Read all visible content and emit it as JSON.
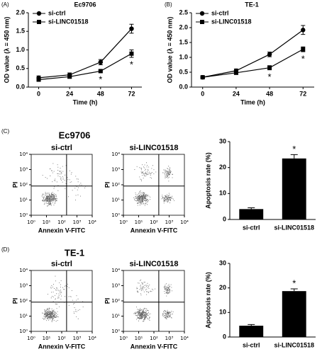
{
  "chart_data": [
    {
      "type": "line",
      "panel_label": "(A)",
      "title": "Ec9706",
      "xlabel": "Time (h)",
      "ylabel": "OD value (λ = 450 nm)",
      "x": [
        0,
        24,
        48,
        72
      ],
      "xlim": [
        -8,
        80
      ],
      "xticks": [
        0,
        24,
        48,
        72
      ],
      "ylim": [
        0,
        2.0
      ],
      "yticks": [
        {
          "value": 0,
          "label": "0.0"
        },
        0.5,
        {
          "value": 1,
          "label": "1.0"
        },
        1.5,
        {
          "value": 2,
          "label": "2.0"
        }
      ],
      "legend": "upper left",
      "grid": false,
      "series": [
        {
          "name": "si-ctrl",
          "color": "#000000",
          "marker": "circle",
          "values": [
            0.25,
            0.33,
            0.67,
            1.57
          ],
          "errors": [
            0.05,
            0.05,
            0.07,
            0.12
          ]
        },
        {
          "name": "si-LINC01518",
          "color": "#000000",
          "marker": "square",
          "values": [
            0.2,
            0.28,
            0.43,
            0.9
          ],
          "errors": [
            0.03,
            0.04,
            0.03,
            0.1
          ]
        }
      ],
      "annotations": [
        {
          "x": 48,
          "text": "*"
        },
        {
          "x": 72,
          "text": "*"
        }
      ]
    },
    {
      "type": "line",
      "panel_label": "(B)",
      "title": "TE-1",
      "xlabel": "Time (h)",
      "ylabel": "OD value (λ = 450 nm)",
      "x": [
        0,
        24,
        48,
        72
      ],
      "xlim": [
        -8,
        80
      ],
      "xticks": [
        0,
        24,
        48,
        72
      ],
      "ylim": [
        0,
        2.5
      ],
      "yticks": [
        {
          "value": 0,
          "label": "0.0"
        },
        0.5,
        {
          "value": 1,
          "label": "1.0"
        },
        1.5,
        {
          "value": 2,
          "label": "2.0"
        },
        2.5
      ],
      "legend": "upper left",
      "grid": false,
      "series": [
        {
          "name": "si-ctrl",
          "color": "#000000",
          "marker": "circle",
          "values": [
            0.33,
            0.55,
            1.1,
            1.92
          ],
          "errors": [
            0.03,
            0.06,
            0.08,
            0.15
          ]
        },
        {
          "name": "si-LINC01518",
          "color": "#000000",
          "marker": "square",
          "values": [
            0.33,
            0.48,
            0.65,
            1.27
          ],
          "errors": [
            0.03,
            0.05,
            0.07,
            0.08
          ]
        }
      ],
      "annotations": [
        {
          "x": 48,
          "text": "*"
        },
        {
          "x": 72,
          "text": "*"
        }
      ]
    },
    {
      "type": "flow",
      "panel_label": "(C)",
      "group_title": "Ec9706",
      "title": "si-ctrl",
      "xlabel": "Annexin V-FITC",
      "ylabel": "PI",
      "xscale": "log",
      "yscale": "log",
      "xlim": [
        1,
        10000
      ],
      "ylim": [
        1,
        10000
      ],
      "xticks": [
        {
          "value": 1,
          "label": "10⁰"
        },
        {
          "value": 10,
          "label": "10¹"
        },
        {
          "value": 100,
          "label": "10²"
        },
        {
          "value": 1000,
          "label": "10³"
        },
        {
          "value": 10000,
          "label": "10⁴"
        }
      ],
      "yticks": [
        {
          "value": 1,
          "label": "10⁰"
        },
        {
          "value": 10,
          "label": "10¹"
        },
        {
          "value": 100,
          "label": "10²"
        },
        {
          "value": 1000,
          "label": "10³"
        },
        {
          "value": 10000,
          "label": "10⁴"
        }
      ]
    },
    {
      "type": "flow",
      "title": "si-LINC01518",
      "xlabel": "Annexin V-FITC",
      "ylabel": "PI",
      "xscale": "log",
      "yscale": "log",
      "xlim": [
        1,
        10000
      ],
      "ylim": [
        1,
        10000
      ],
      "xticks": [
        {
          "value": 1,
          "label": "10⁰"
        },
        {
          "value": 10,
          "label": "10¹"
        },
        {
          "value": 100,
          "label": "10²"
        },
        {
          "value": 1000,
          "label": "10³"
        },
        {
          "value": 10000,
          "label": "10⁴"
        }
      ],
      "yticks": [
        {
          "value": 1,
          "label": "10⁰"
        },
        {
          "value": 10,
          "label": "10¹"
        },
        {
          "value": 100,
          "label": "10²"
        },
        {
          "value": 1000,
          "label": "10³"
        },
        {
          "value": 10000,
          "label": "10⁴"
        }
      ]
    },
    {
      "type": "bar",
      "ylabel": "Apoptosis rate (%)",
      "categories": [
        "si-ctrl",
        "si-LINC01518"
      ],
      "values": [
        4,
        23.5
      ],
      "errors": [
        0.5,
        1.5
      ],
      "color": "#000000",
      "ylim": [
        0,
        30
      ],
      "yticks": [
        0,
        10,
        20,
        30
      ],
      "grid": false,
      "annotations": [
        {
          "category": "si-LINC01518",
          "text": "*"
        }
      ]
    },
    {
      "type": "flow",
      "panel_label": "(D)",
      "group_title": "TE-1",
      "title": "si-ctrl",
      "xlabel": "Annexin V-FITC",
      "ylabel": "PI",
      "xscale": "log",
      "yscale": "log",
      "xlim": [
        1,
        10000
      ],
      "ylim": [
        1,
        10000
      ],
      "xticks": [
        {
          "value": 1,
          "label": "10⁰"
        },
        {
          "value": 10,
          "label": "10¹"
        },
        {
          "value": 100,
          "label": "10²"
        },
        {
          "value": 1000,
          "label": "10³"
        },
        {
          "value": 10000,
          "label": "10⁴"
        }
      ],
      "yticks": [
        {
          "value": 1,
          "label": "10⁰"
        },
        {
          "value": 10,
          "label": "10¹"
        },
        {
          "value": 100,
          "label": "10²"
        },
        {
          "value": 1000,
          "label": "10³"
        },
        {
          "value": 10000,
          "label": "10⁴"
        }
      ]
    },
    {
      "type": "flow",
      "title": "si-LINC01518",
      "xlabel": "Annexin V-FITC",
      "ylabel": "PI",
      "xscale": "log",
      "yscale": "log",
      "xlim": [
        1,
        10000
      ],
      "ylim": [
        1,
        10000
      ],
      "xticks": [
        {
          "value": 1,
          "label": "10⁰"
        },
        {
          "value": 10,
          "label": "10¹"
        },
        {
          "value": 100,
          "label": "10²"
        },
        {
          "value": 1000,
          "label": "10³"
        },
        {
          "value": 10000,
          "label": "10⁴"
        }
      ],
      "yticks": [
        {
          "value": 1,
          "label": "10⁰"
        },
        {
          "value": 10,
          "label": "10¹"
        },
        {
          "value": 100,
          "label": "10²"
        },
        {
          "value": 1000,
          "label": "10³"
        },
        {
          "value": 10000,
          "label": "10⁴"
        }
      ]
    },
    {
      "type": "bar",
      "ylabel": "Apoptosis rate (%)",
      "categories": [
        "si-ctrl",
        "si-LINC01518"
      ],
      "values": [
        4.6,
        18.7
      ],
      "errors": [
        0.5,
        0.9
      ],
      "color": "#000000",
      "ylim": [
        0,
        30
      ],
      "yticks": [
        0,
        10,
        20,
        30
      ],
      "grid": false,
      "annotations": [
        {
          "category": "si-LINC01518",
          "text": "*"
        }
      ]
    }
  ]
}
